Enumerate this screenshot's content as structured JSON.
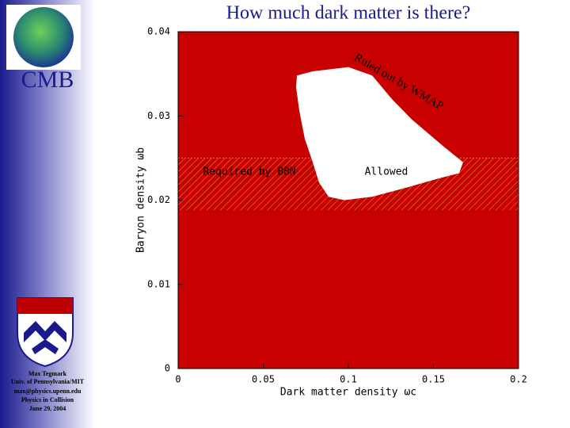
{
  "sidebar": {
    "heading": "CMB",
    "author": "Max Tegmark",
    "affiliation": "Univ. of Pennsylvania/MIT",
    "email": "max@physics.upenn.edu",
    "event": "Physics in Collision",
    "date": "June 29, 2004"
  },
  "chart_data": {
    "type": "region",
    "title": "How much dark matter is there?",
    "x_label": "Dark matter density ωc",
    "y_label": "Baryon density ωb",
    "xlim": [
      0,
      0.2
    ],
    "ylim": [
      0,
      0.04
    ],
    "xticks": [
      0,
      0.05,
      0.1,
      0.15,
      0.2
    ],
    "yticks": [
      0,
      0.01,
      0.02,
      0.03,
      0.04
    ],
    "background_color": "#c80000",
    "background_label": "Ruled out by WMAP",
    "bands": [
      {
        "name": "Required by BBN",
        "ylim": [
          0.0188,
          0.025
        ],
        "color": "#e0a040"
      }
    ],
    "series": [
      {
        "name": "Allowed",
        "color": "#ffffff",
        "x": [
          0.0698,
          0.0791,
          0.1,
          0.114,
          0.1256,
          0.1372,
          0.1558,
          0.1674,
          0.1651,
          0.1535,
          0.1326,
          0.114,
          0.0977,
          0.0884,
          0.0828,
          0.0791,
          0.0744,
          0.0712,
          0.0693
        ],
        "values": [
          0.0348,
          0.0353,
          0.0358,
          0.0348,
          0.032,
          0.0296,
          0.0264,
          0.0245,
          0.0232,
          0.0226,
          0.0214,
          0.0204,
          0.02,
          0.0204,
          0.0221,
          0.0245,
          0.0273,
          0.0306,
          0.0334
        ]
      }
    ]
  }
}
